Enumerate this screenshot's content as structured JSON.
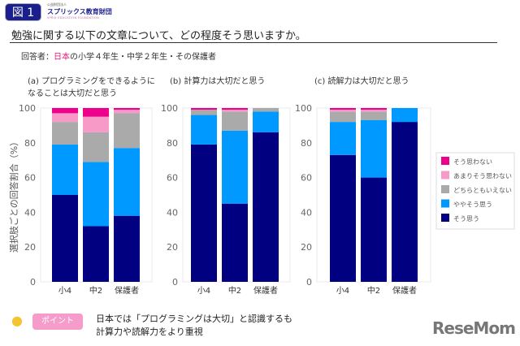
{
  "header": {
    "figure_label": "図 1",
    "org_small": "公益財団法人",
    "org_name": "スプリックス教育財団",
    "org_en": "SPRIX EDUCATION FOUNDATION",
    "question": "勉強に関する以下の文章について、どの程度そう思いますか。",
    "respondents_prefix": "回答者：",
    "respondents_highlight": "日本",
    "respondents_suffix": "の小学４年生・中学２年生・その保護者"
  },
  "footer": {
    "point_label": "ポイント",
    "summary_line1": "日本では「プログラミングは大切」と認識するも",
    "summary_line2": "計算力や読解力をより重視",
    "logo": "ReseMom"
  },
  "colors": {
    "そう思う": "#000080",
    "ややそう思う": "#0099ff",
    "どちらともいえない": "#aaaaaa",
    "あまりそう思わない": "#f79ac8",
    "そう思わない": "#ec008c",
    "accent": "#e0197d"
  },
  "chart_data": [
    {
      "type": "bar",
      "stacked": true,
      "title_line1": "(a) プログラミングをできるように",
      "title_line2": "なることは大切だと思う",
      "ylabel": "選択肢ごとの回答割合（%）",
      "ylim": [
        0,
        100
      ],
      "yticks": [
        "0",
        "20",
        "40",
        "60",
        "80",
        "100"
      ],
      "categories": [
        "小4",
        "中2",
        "保護者"
      ],
      "series": [
        {
          "name": "そう思う",
          "values": [
            50,
            32,
            38
          ]
        },
        {
          "name": "ややそう思う",
          "values": [
            29,
            37,
            39
          ]
        },
        {
          "name": "どちらともいえない",
          "values": [
            13,
            17,
            20
          ]
        },
        {
          "name": "あまりそう思わない",
          "values": [
            5,
            9,
            2
          ]
        },
        {
          "name": "そう思わない",
          "values": [
            3,
            5,
            1
          ]
        }
      ]
    },
    {
      "type": "bar",
      "stacked": true,
      "title_line1": "(b) 計算力は大切だと思う",
      "ylim": [
        0,
        100
      ],
      "yticks": [
        "0",
        "20",
        "40",
        "60",
        "80",
        "100"
      ],
      "categories": [
        "小4",
        "中2",
        "保護者"
      ],
      "series": [
        {
          "name": "そう思う",
          "values": [
            79,
            45,
            86
          ]
        },
        {
          "name": "ややそう思う",
          "values": [
            17,
            42,
            12
          ]
        },
        {
          "name": "どちらともいえない",
          "values": [
            3,
            11,
            2
          ]
        },
        {
          "name": "あまりそう思わない",
          "values": [
            0,
            1,
            0
          ]
        },
        {
          "name": "そう思わない",
          "values": [
            1,
            1,
            0
          ]
        }
      ]
    },
    {
      "type": "bar",
      "stacked": true,
      "title_line1": "(c) 読解力は大切だと思う",
      "ylim": [
        0,
        100
      ],
      "yticks": [
        "0",
        "20",
        "40",
        "60",
        "80",
        "100"
      ],
      "categories": [
        "小4",
        "中2",
        "保護者"
      ],
      "series": [
        {
          "name": "そう思う",
          "values": [
            73,
            60,
            92
          ]
        },
        {
          "name": "ややそう思う",
          "values": [
            19,
            33,
            8
          ]
        },
        {
          "name": "どちらともいえない",
          "values": [
            6,
            5,
            0
          ]
        },
        {
          "name": "あまりそう思わない",
          "values": [
            1,
            1,
            0
          ]
        },
        {
          "name": "そう思わない",
          "values": [
            1,
            1,
            0
          ]
        }
      ],
      "legend": {
        "placement": "right",
        "entries": [
          "そう思わない",
          "あまりそう思わない",
          "どちらともいえない",
          "ややそう思う",
          "そう思う"
        ]
      }
    }
  ]
}
